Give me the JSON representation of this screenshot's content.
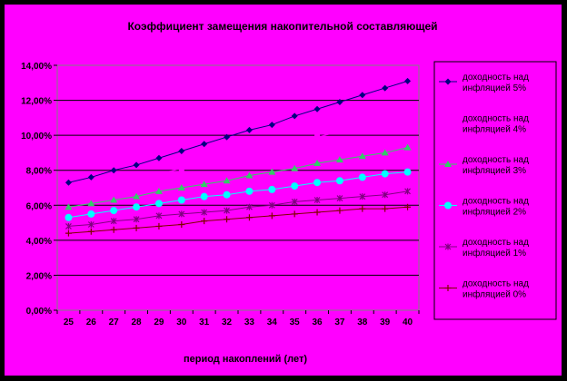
{
  "chart_data": {
    "type": "line",
    "title": "Коэффициент замещения накопительной составляющей",
    "xlabel": "период накоплений (лет)",
    "ylabel": "",
    "x": [
      25,
      26,
      27,
      28,
      29,
      30,
      31,
      32,
      33,
      34,
      35,
      36,
      37,
      38,
      39,
      40
    ],
    "y_ticks": [
      "0,00%",
      "2,00%",
      "4,00%",
      "6,00%",
      "8,00%",
      "10,00%",
      "12,00%",
      "14,00%"
    ],
    "ylim": [
      0,
      14
    ],
    "y_unit": "%",
    "grid": "horizontal",
    "legend_position": "right",
    "series": [
      {
        "name": "доходность над инфляцией 5%",
        "color": "#000080",
        "marker": "diamond",
        "values": [
          7.3,
          7.6,
          8.0,
          8.3,
          8.7,
          9.1,
          9.5,
          9.9,
          10.3,
          10.6,
          11.1,
          11.5,
          11.9,
          12.3,
          12.7,
          13.1
        ]
      },
      {
        "name": "доходность над инфляцией 4%",
        "color": "#FF00FF",
        "marker": "square",
        "values": [
          6.6,
          6.9,
          7.2,
          7.5,
          7.8,
          8.1,
          8.4,
          8.7,
          9.0,
          9.3,
          9.6,
          9.9,
          10.2,
          10.5,
          10.8,
          11.1
        ]
      },
      {
        "name": "доходность над инфляцией 3%",
        "color": "#33CC66",
        "marker": "triangle",
        "values": [
          5.9,
          6.1,
          6.3,
          6.5,
          6.8,
          7.0,
          7.2,
          7.4,
          7.7,
          7.9,
          8.1,
          8.4,
          8.6,
          8.8,
          9.0,
          9.3
        ]
      },
      {
        "name": "доходность над инфляцией 2%",
        "color": "#00FFFF",
        "marker": "circle",
        "values": [
          5.3,
          5.5,
          5.7,
          5.9,
          6.1,
          6.3,
          6.5,
          6.6,
          6.8,
          6.9,
          7.1,
          7.3,
          7.4,
          7.6,
          7.8,
          7.9
        ]
      },
      {
        "name": "доходность над инфляцией 1%",
        "color": "#800080",
        "marker": "star",
        "values": [
          4.8,
          4.9,
          5.1,
          5.2,
          5.4,
          5.5,
          5.6,
          5.7,
          5.9,
          6.0,
          6.2,
          6.3,
          6.4,
          6.5,
          6.6,
          6.8
        ]
      },
      {
        "name": "доходность над инфляцией 0%",
        "color": "#800000",
        "marker": "plus",
        "values": [
          4.4,
          4.5,
          4.6,
          4.7,
          4.8,
          4.9,
          5.1,
          5.2,
          5.3,
          5.4,
          5.5,
          5.6,
          5.7,
          5.8,
          5.8,
          5.9
        ]
      }
    ]
  }
}
